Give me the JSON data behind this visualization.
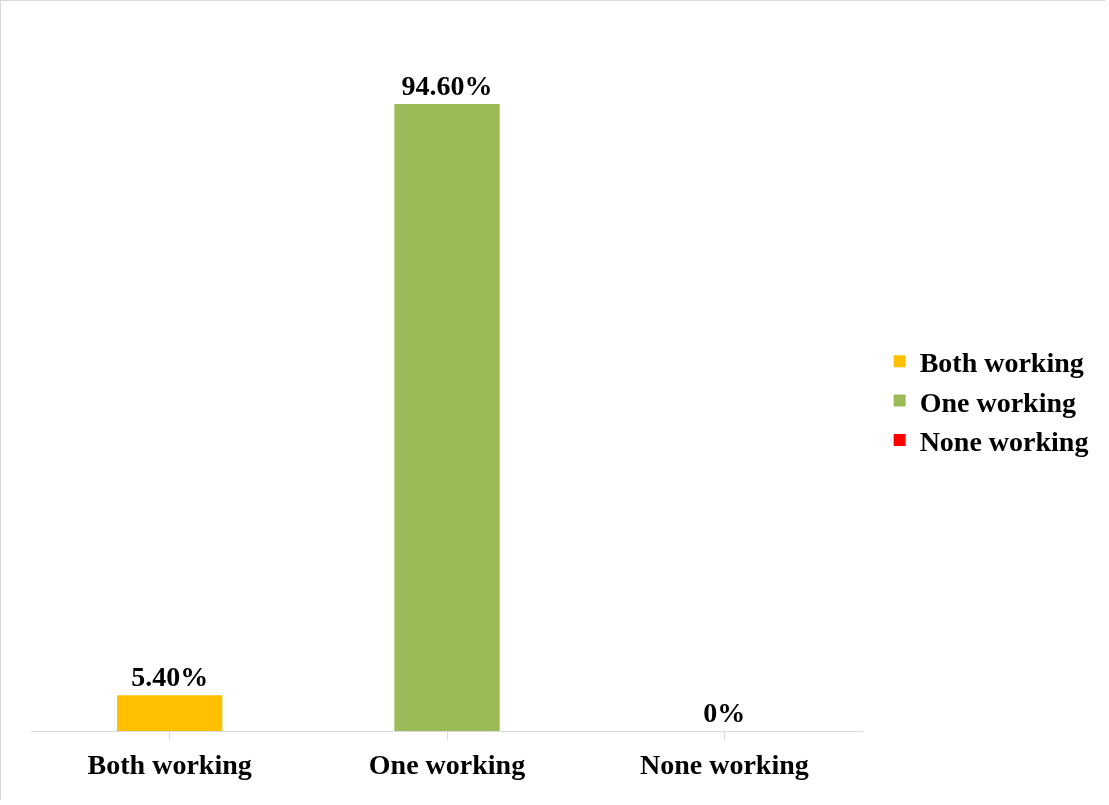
{
  "chart_data": {
    "type": "bar",
    "categories": [
      "Both working",
      "One working",
      "None working"
    ],
    "series": [
      {
        "name": "Both working",
        "color": "#ffc000",
        "values": [
          5.4,
          null,
          null
        ],
        "value_labels": [
          "5.40%",
          null,
          null
        ]
      },
      {
        "name": "One working",
        "color": "#9bbb59",
        "values": [
          null,
          94.6,
          null
        ],
        "value_labels": [
          null,
          "94.60%",
          null
        ]
      },
      {
        "name": "None working",
        "color": "#ff0000",
        "values": [
          null,
          null,
          0
        ],
        "value_labels": [
          null,
          null,
          "0%"
        ]
      }
    ],
    "legend": "right",
    "grid": false
  }
}
